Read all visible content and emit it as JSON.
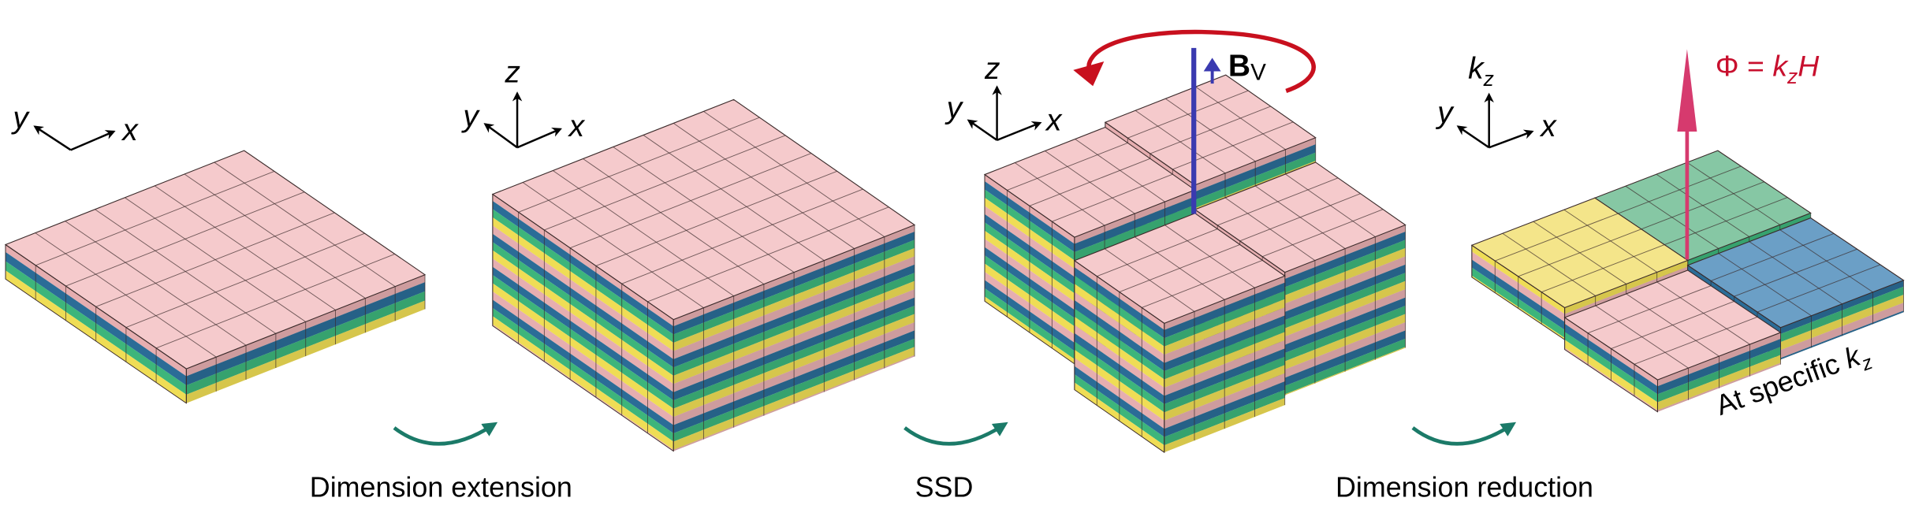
{
  "labels": {
    "step1": "Dimension extension",
    "step2": "SSD",
    "step3": "Dimension reduction"
  },
  "axes": {
    "x": "x",
    "y": "y",
    "z": "z",
    "k": "k",
    "k_sub": "z"
  },
  "field": {
    "symbol": "B",
    "subscript": "V"
  },
  "flux": {
    "lhs": "Φ = ",
    "k": "k",
    "sub": "z",
    "H": "H"
  },
  "annotation": {
    "text": "At specific ",
    "k": "k",
    "sub": "z"
  },
  "colors": {
    "pink_top": "#f5cacc",
    "pink_side": "#e6aeb0",
    "blue_side": "#2b6c97",
    "green_side": "#3db57b",
    "yellow_side": "#efdd55",
    "yellow_top": "#f4e58a",
    "green_top": "#86c7a4",
    "blue_top": "#6b9fc6",
    "field_line": "#3a3ab0",
    "rotation_arrow": "#c8101e",
    "flux_arrow": "#d63a6e",
    "flux_text": "#c8102e",
    "step_arrow": "#1b7a68"
  }
}
